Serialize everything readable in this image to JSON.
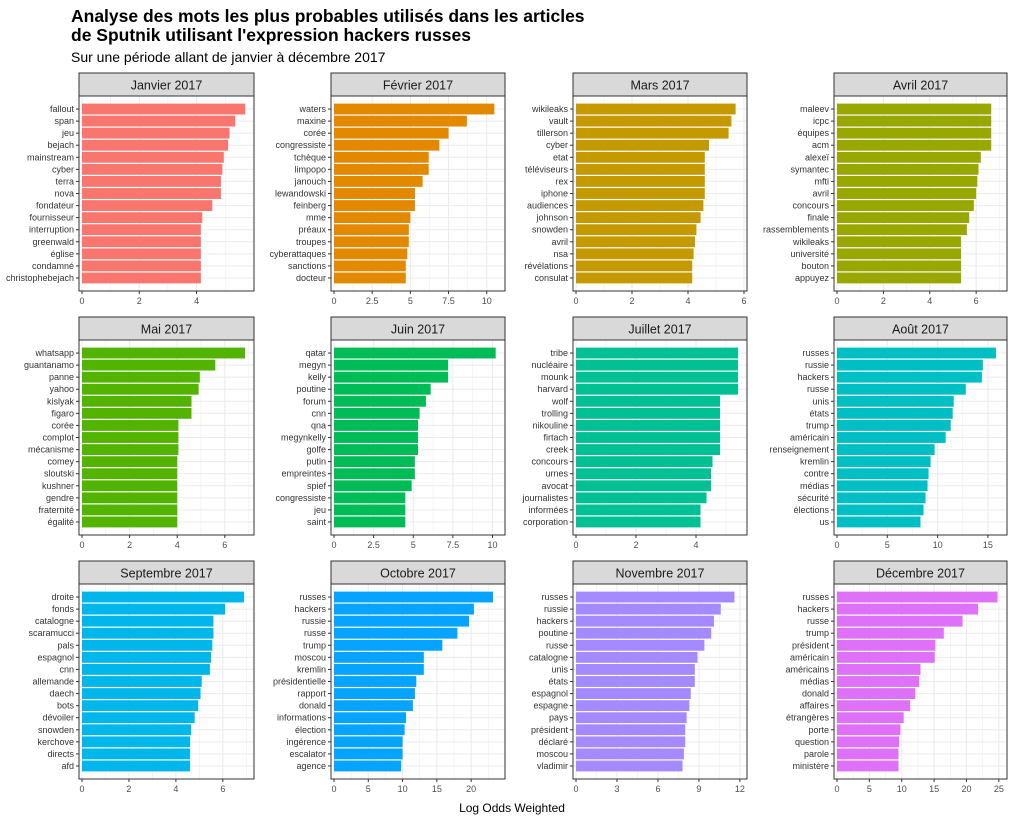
{
  "title_line1": "Analyse des mots les plus probables utilisés dans les articles",
  "title_line2": "de Sputnik utilisant l'expression hackers russes",
  "subtitle": "Sur une période allant de janvier à décembre 2017",
  "xlabel": "Log Odds Weighted",
  "chart_data": [
    {
      "type": "bar",
      "title": "Janvier 2017",
      "color": "#F8766D",
      "xmax": 5.9,
      "ticks": [
        0,
        2,
        4
      ],
      "categories": [
        "fallout",
        "span",
        "jeu",
        "bejach",
        "mainstream",
        "cyber",
        "terra",
        "nova",
        "fondateur",
        "fournisseur",
        "interruption",
        "greenwald",
        "église",
        "condamné",
        "christophebejach"
      ],
      "values": [
        5.7,
        5.35,
        5.15,
        5.1,
        4.95,
        4.9,
        4.85,
        4.85,
        4.55,
        4.2,
        4.15,
        4.15,
        4.15,
        4.15,
        4.15
      ]
    },
    {
      "type": "bar",
      "title": "Février 2017",
      "color": "#E38900",
      "xmax": 11.0,
      "ticks": [
        0,
        2.5,
        5,
        7.5,
        10
      ],
      "categories": [
        "waters",
        "maxine",
        "corée",
        "congressiste",
        "tchèque",
        "limpopo",
        "janouch",
        "lewandowski",
        "feinberg",
        "mme",
        "préaux",
        "troupes",
        "cyberattaques",
        "sanctions",
        "docteur"
      ],
      "values": [
        10.5,
        8.7,
        7.5,
        6.9,
        6.2,
        6.2,
        5.8,
        5.3,
        5.3,
        5.0,
        4.9,
        4.9,
        4.8,
        4.7,
        4.7
      ]
    },
    {
      "type": "bar",
      "title": "Mars 2017",
      "color": "#C49A00",
      "xmax": 6.0,
      "ticks": [
        0,
        2,
        4,
        6
      ],
      "categories": [
        "wikileaks",
        "vault",
        "tillerson",
        "cyber",
        "etat",
        "téléviseurs",
        "rex",
        "iphone",
        "audiences",
        "johnson",
        "snowden",
        "avril",
        "nsa",
        "révélations",
        "consulat"
      ],
      "values": [
        5.7,
        5.55,
        5.45,
        4.75,
        4.6,
        4.6,
        4.6,
        4.6,
        4.55,
        4.45,
        4.3,
        4.25,
        4.2,
        4.15,
        4.15
      ]
    },
    {
      "type": "bar",
      "title": "Avril 2017",
      "color": "#99A800",
      "xmax": 7.2,
      "ticks": [
        0,
        2,
        4,
        6
      ],
      "categories": [
        "maleev",
        "icpc",
        "équipes",
        "acm",
        "alexeï",
        "symantec",
        "mfti",
        "avril",
        "concours",
        "finale",
        "rassemblements",
        "wikileaks",
        "université",
        "bouton",
        "appuyez"
      ],
      "values": [
        6.65,
        6.65,
        6.65,
        6.65,
        6.2,
        6.1,
        6.05,
        6.0,
        5.9,
        5.7,
        5.6,
        5.35,
        5.35,
        5.35,
        5.35
      ]
    },
    {
      "type": "bar",
      "title": "Mai 2017",
      "color": "#53B400",
      "xmax": 7.1,
      "ticks": [
        0,
        2,
        4,
        6
      ],
      "categories": [
        "whatsapp",
        "guantanamo",
        "panne",
        "yahoo",
        "kislyak",
        "figaro",
        "corée",
        "complot",
        "mécanisme",
        "comey",
        "sloutski",
        "kushner",
        "gendre",
        "fraternité",
        "égalité"
      ],
      "values": [
        6.85,
        5.6,
        4.95,
        4.9,
        4.6,
        4.6,
        4.05,
        4.05,
        4.05,
        4.0,
        4.0,
        4.0,
        4.0,
        4.0,
        4.0
      ]
    },
    {
      "type": "bar",
      "title": "Juin 2017",
      "color": "#00BC56",
      "xmax": 10.6,
      "ticks": [
        0,
        2.5,
        5,
        7.5,
        10
      ],
      "categories": [
        "qatar",
        "megyn",
        "kelly",
        "poutine",
        "forum",
        "cnn",
        "qna",
        "megynkelly",
        "golfe",
        "putin",
        "empreintes",
        "spief",
        "congressiste",
        "jeu",
        "saint"
      ],
      "values": [
        10.2,
        7.2,
        7.2,
        6.1,
        5.8,
        5.4,
        5.3,
        5.3,
        5.3,
        5.1,
        5.1,
        4.9,
        4.5,
        4.5,
        4.5
      ]
    },
    {
      "type": "bar",
      "title": "Juillet 2017",
      "color": "#00C094",
      "xmax": 5.6,
      "ticks": [
        0,
        2,
        4
      ],
      "categories": [
        "tribe",
        "nucléaire",
        "mounk",
        "harvard",
        "wolf",
        "trolling",
        "nikouline",
        "firtach",
        "creek",
        "concours",
        "urnes",
        "avocat",
        "journalistes",
        "informées",
        "corporation"
      ],
      "values": [
        5.4,
        5.4,
        5.4,
        5.4,
        4.8,
        4.8,
        4.8,
        4.8,
        4.8,
        4.55,
        4.5,
        4.5,
        4.35,
        4.15,
        4.15
      ]
    },
    {
      "type": "bar",
      "title": "Août 2017",
      "color": "#00BFC4",
      "xmax": 16.6,
      "ticks": [
        0,
        5,
        10,
        15
      ],
      "categories": [
        "russes",
        "russie",
        "hackers",
        "russe",
        "unis",
        "états",
        "trump",
        "américain",
        "renseignement",
        "kremlin",
        "contre",
        "médias",
        "sécurité",
        "élections",
        "us"
      ],
      "values": [
        15.8,
        14.5,
        14.4,
        12.8,
        11.6,
        11.5,
        11.3,
        10.8,
        9.7,
        9.3,
        9.1,
        9.0,
        8.8,
        8.6,
        8.3
      ]
    },
    {
      "type": "bar",
      "title": "Septembre 2017",
      "color": "#00B6EB",
      "xmax": 7.2,
      "ticks": [
        0,
        2,
        4,
        6
      ],
      "categories": [
        "droite",
        "fonds",
        "catalogne",
        "scaramucci",
        "pals",
        "espagnol",
        "cnn",
        "allemande",
        "daech",
        "bots",
        "dévoiler",
        "snowden",
        "kerchove",
        "directs",
        "afd"
      ],
      "values": [
        6.9,
        6.1,
        5.6,
        5.6,
        5.55,
        5.5,
        5.45,
        5.1,
        5.05,
        4.95,
        4.8,
        4.65,
        4.6,
        4.6,
        4.6
      ]
    },
    {
      "type": "bar",
      "title": "Octobre 2017",
      "color": "#06A4FF",
      "xmax": 24.5,
      "ticks": [
        0,
        5,
        10,
        15,
        20
      ],
      "categories": [
        "russes",
        "hackers",
        "russie",
        "russe",
        "trump",
        "moscou",
        "kremlin",
        "présidentielle",
        "rapport",
        "donald",
        "informations",
        "élection",
        "ingérence",
        "escalator",
        "agence"
      ],
      "values": [
        23.2,
        20.4,
        19.7,
        18.0,
        15.8,
        13.1,
        13.1,
        12.0,
        11.8,
        11.5,
        10.5,
        10.3,
        10.0,
        10.0,
        9.8
      ]
    },
    {
      "type": "bar",
      "title": "Novembre 2017",
      "color": "#A58AFF",
      "xmax": 12.3,
      "ticks": [
        0,
        3,
        6,
        9,
        12
      ],
      "categories": [
        "russes",
        "russie",
        "hackers",
        "poutine",
        "russe",
        "catalogne",
        "unis",
        "états",
        "espagnol",
        "espagne",
        "pays",
        "président",
        "déclaré",
        "moscou",
        "vladimir"
      ],
      "values": [
        11.6,
        10.6,
        10.1,
        9.9,
        9.4,
        8.9,
        8.7,
        8.7,
        8.4,
        8.3,
        8.1,
        8.0,
        8.0,
        7.9,
        7.8
      ]
    },
    {
      "type": "bar",
      "title": "Décembre 2017",
      "color": "#DF70F8",
      "xmax": 25.8,
      "ticks": [
        0,
        5,
        10,
        15,
        20,
        25
      ],
      "categories": [
        "russes",
        "hackers",
        "russe",
        "trump",
        "président",
        "américain",
        "américains",
        "médias",
        "donald",
        "affaires",
        "étrangères",
        "porte",
        "question",
        "parole",
        "ministère"
      ],
      "values": [
        24.8,
        21.8,
        19.4,
        16.5,
        15.2,
        15.1,
        12.9,
        12.7,
        12.1,
        11.3,
        10.3,
        9.8,
        9.6,
        9.5,
        9.5
      ]
    }
  ]
}
